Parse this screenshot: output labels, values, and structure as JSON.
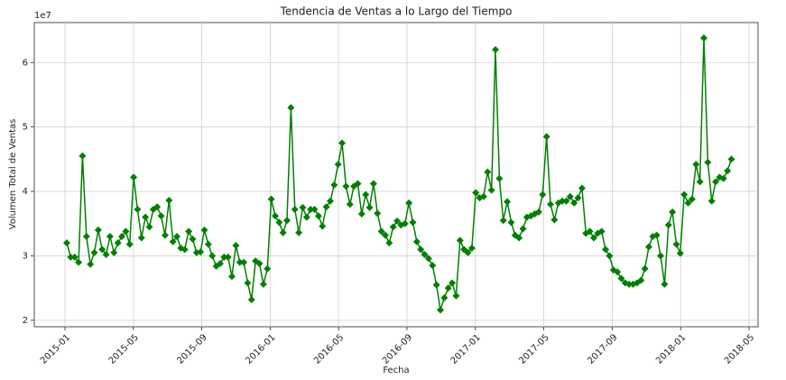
{
  "chart_data": {
    "type": "line",
    "title": "Tendencia de Ventas a lo Largo del Tiempo",
    "x_label": "Fecha",
    "y_label": "Volumen Total de Ventas",
    "y_offset_label": "1e7",
    "color": "#008000",
    "marker": "diamond",
    "grid": true,
    "xticks": [
      "2015-01",
      "2015-05",
      "2015-09",
      "2016-01",
      "2016-05",
      "2016-09",
      "2017-01",
      "2017-05",
      "2017-09",
      "2018-01",
      "2018-05"
    ],
    "ylim": [
      1.9,
      6.62
    ],
    "yticks": [
      2,
      3,
      4,
      5,
      6
    ],
    "values": [
      3.2,
      2.98,
      2.98,
      2.9,
      4.55,
      3.3,
      2.87,
      3.05,
      3.4,
      3.1,
      3.02,
      3.3,
      3.05,
      3.2,
      3.3,
      3.38,
      3.18,
      4.22,
      3.72,
      3.28,
      3.6,
      3.45,
      3.72,
      3.76,
      3.62,
      3.32,
      3.86,
      3.22,
      3.3,
      3.12,
      3.1,
      3.38,
      3.26,
      3.05,
      3.06,
      3.4,
      3.18,
      3.0,
      2.84,
      2.88,
      2.98,
      2.98,
      2.68,
      3.16,
      2.9,
      2.9,
      2.58,
      2.32,
      2.92,
      2.88,
      2.56,
      2.8,
      3.88,
      3.62,
      3.52,
      3.36,
      3.55,
      5.3,
      3.72,
      3.36,
      3.75,
      3.6,
      3.72,
      3.72,
      3.62,
      3.46,
      3.76,
      3.85,
      4.1,
      4.42,
      4.75,
      4.08,
      3.8,
      4.08,
      4.12,
      3.65,
      3.95,
      3.75,
      4.12,
      3.66,
      3.38,
      3.32,
      3.2,
      3.45,
      3.54,
      3.48,
      3.5,
      3.82,
      3.52,
      3.22,
      3.1,
      3.02,
      2.96,
      2.85,
      2.55,
      2.16,
      2.35,
      2.5,
      2.58,
      2.38,
      3.24,
      3.1,
      3.05,
      3.12,
      3.98,
      3.9,
      3.92,
      4.3,
      4.02,
      6.2,
      4.2,
      3.55,
      3.84,
      3.52,
      3.32,
      3.28,
      3.42,
      3.6,
      3.62,
      3.65,
      3.68,
      3.95,
      4.85,
      3.8,
      3.56,
      3.82,
      3.85,
      3.85,
      3.92,
      3.82,
      3.9,
      4.05,
      3.35,
      3.38,
      3.28,
      3.35,
      3.38,
      3.1,
      3.0,
      2.78,
      2.75,
      2.65,
      2.58,
      2.56,
      2.56,
      2.58,
      2.62,
      2.8,
      3.14,
      3.3,
      3.32,
      3.0,
      2.56,
      3.48,
      3.68,
      3.18,
      3.04,
      3.95,
      3.82,
      3.88,
      4.42,
      4.15,
      6.38,
      4.45,
      3.85,
      4.15,
      4.22,
      4.2,
      4.32,
      4.5
    ]
  }
}
